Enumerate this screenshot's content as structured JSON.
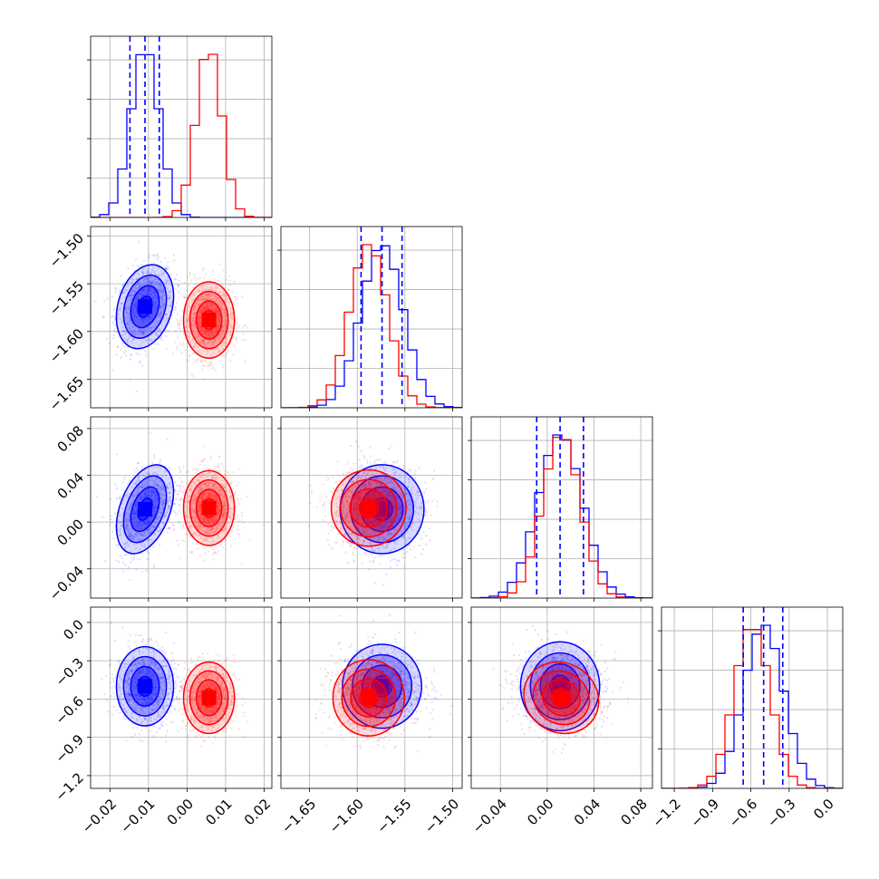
{
  "chart_data": {
    "type": "corner",
    "title": "",
    "legend": "none",
    "grid": true,
    "colors": {
      "series_a": "#0000ff",
      "series_b": "#ff0000"
    },
    "parameters": [
      {
        "name": "",
        "range": [
          -0.025,
          0.022
        ],
        "ticks": [
          "−0.02",
          "−0.01",
          "0.00",
          "0.01",
          "0.02"
        ],
        "tick_values": [
          -0.02,
          -0.01,
          0.0,
          0.01,
          0.02
        ]
      },
      {
        "name": "",
        "range": [
          -1.68,
          -1.49
        ],
        "ticks": [
          "−1.65",
          "−1.60",
          "−1.55",
          "−1.50"
        ],
        "tick_values": [
          -1.65,
          -1.6,
          -1.55,
          -1.5
        ]
      },
      {
        "name": "",
        "range": [
          -0.065,
          0.09
        ],
        "ticks": [
          "−0.04",
          "0.00",
          "0.04",
          "0.08"
        ],
        "tick_values": [
          -0.04,
          0.0,
          0.04,
          0.08
        ]
      },
      {
        "name": "",
        "range": [
          -1.3,
          0.12
        ],
        "ticks": [
          "−1.2",
          "−0.9",
          "−0.6",
          "−0.3",
          "0.0"
        ],
        "tick_values": [
          -1.2,
          -0.9,
          -0.6,
          -0.3,
          0.0
        ]
      }
    ],
    "series": [
      {
        "name": "",
        "color": "#0000ff",
        "mean": [
          -0.0109,
          -1.574,
          0.011,
          -0.5
        ],
        "std": [
          0.0037,
          0.022,
          0.019,
          0.155
        ],
        "corr": {
          "0-1": 0.25,
          "0-2": 0.4,
          "0-3": 0.0,
          "1-2": 0.0,
          "1-3": 0.0,
          "2-3": 0.0
        },
        "quantiles": [
          [
            -0.0148,
            -0.0109,
            -0.0072
          ],
          [
            -1.596,
            -1.574,
            -1.553
          ],
          [
            -0.009,
            0.011,
            0.031
          ],
          [
            -0.66,
            -0.5,
            -0.35
          ]
        ]
      },
      {
        "name": "",
        "color": "#ff0000",
        "mean": [
          0.0057,
          -1.588,
          0.012,
          -0.59
        ],
        "std": [
          0.0033,
          0.02,
          0.016,
          0.14
        ],
        "corr": {
          "0-1": 0.0,
          "0-2": 0.0,
          "0-3": 0.0,
          "1-2": 0.0,
          "1-3": 0.0,
          "2-3": -0.1
        }
      }
    ]
  }
}
